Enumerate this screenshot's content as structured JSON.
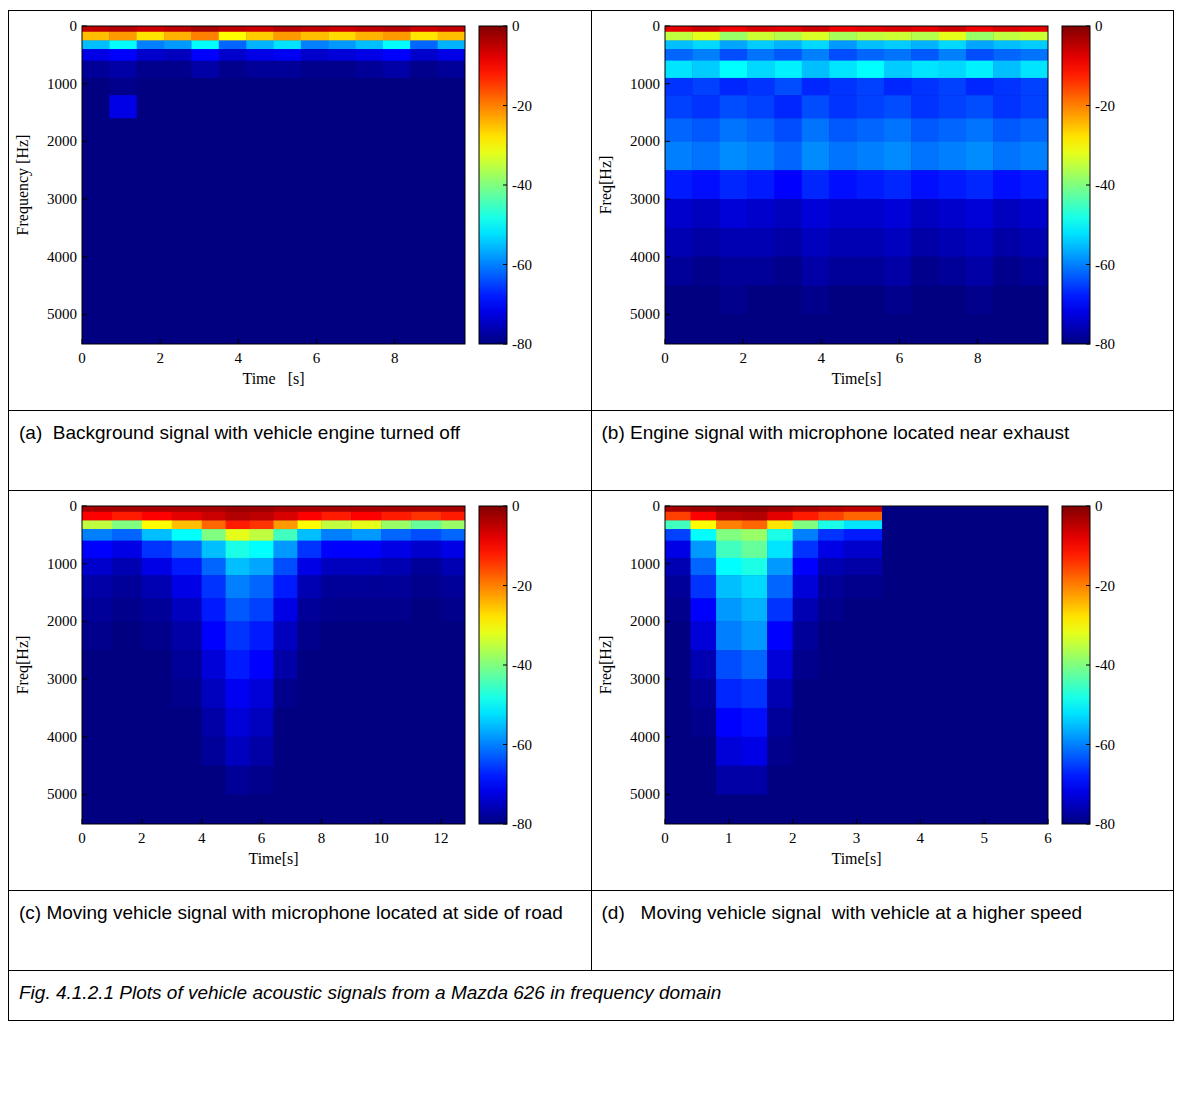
{
  "figure_caption": "Fig. 4.1.2.1 Plots of vehicle acoustic signals from a Mazda 626 in frequency domain",
  "chart_data": [
    {
      "type": "heatmap",
      "caption": "(a)  Background signal with vehicle engine turned off",
      "xlabel": "Time   [s]",
      "ylabel": "Frequency [Hz]",
      "xlim": [
        0,
        9.8
      ],
      "xticks": [
        0,
        2,
        4,
        6,
        8
      ],
      "ylim": [
        0,
        5512
      ],
      "yticks": [
        0,
        1000,
        2000,
        3000,
        4000,
        5000
      ],
      "color_range": [
        -80,
        0
      ],
      "color_ticks": [
        0,
        -20,
        -40,
        -60,
        -80
      ],
      "x_bins": [
        0,
        0.7,
        1.4,
        2.1,
        2.8,
        3.5,
        4.2,
        4.9,
        5.6,
        6.3,
        7.0,
        7.7,
        8.4,
        9.1,
        9.8
      ],
      "y_bins": [
        0,
        100,
        250,
        400,
        600,
        900,
        1200,
        1600,
        2000,
        2500,
        3000,
        3500,
        4000,
        4500,
        5000,
        5512
      ],
      "cells": [
        [
          -5,
          -4,
          -6,
          -5,
          -3,
          -5,
          -6,
          -4,
          -5,
          -6,
          -5,
          -4,
          -6,
          -5
        ],
        [
          -25,
          -22,
          -28,
          -24,
          -20,
          -30,
          -26,
          -22,
          -25,
          -27,
          -24,
          -22,
          -28,
          -25
        ],
        [
          -55,
          -50,
          -60,
          -58,
          -50,
          -62,
          -56,
          -52,
          -60,
          -58,
          -55,
          -50,
          -62,
          -56
        ],
        [
          -72,
          -70,
          -74,
          -75,
          -70,
          -74,
          -72,
          -71,
          -74,
          -73,
          -72,
          -70,
          -74,
          -72
        ],
        [
          -78,
          -77,
          -79,
          -79,
          -77,
          -79,
          -78,
          -78,
          -79,
          -79,
          -78,
          -77,
          -79,
          -78
        ],
        [
          -80,
          -79,
          -80,
          -80,
          -80,
          -80,
          -80,
          -80,
          -80,
          -80,
          -80,
          -80,
          -80,
          -80
        ],
        [
          -80,
          -72,
          -80,
          -80,
          -80,
          -80,
          -80,
          -80,
          -80,
          -80,
          -80,
          -80,
          -80,
          -80
        ],
        [
          -80,
          -80,
          -80,
          -80,
          -80,
          -80,
          -80,
          -80,
          -80,
          -80,
          -80,
          -80,
          -80,
          -80
        ],
        [
          -80,
          -80,
          -80,
          -80,
          -80,
          -80,
          -80,
          -80,
          -80,
          -80,
          -80,
          -80,
          -80,
          -80
        ],
        [
          -80,
          -80,
          -80,
          -80,
          -80,
          -80,
          -80,
          -80,
          -80,
          -80,
          -80,
          -80,
          -80,
          -80
        ],
        [
          -80,
          -80,
          -80,
          -80,
          -80,
          -80,
          -80,
          -80,
          -80,
          -80,
          -80,
          -80,
          -80,
          -80
        ],
        [
          -80,
          -80,
          -80,
          -80,
          -80,
          -80,
          -80,
          -80,
          -80,
          -80,
          -80,
          -80,
          -80,
          -80
        ],
        [
          -80,
          -80,
          -80,
          -80,
          -80,
          -80,
          -80,
          -80,
          -80,
          -80,
          -80,
          -80,
          -80,
          -80
        ],
        [
          -80,
          -80,
          -80,
          -80,
          -80,
          -80,
          -80,
          -80,
          -80,
          -80,
          -80,
          -80,
          -80,
          -80
        ],
        [
          -80,
          -80,
          -80,
          -80,
          -80,
          -80,
          -80,
          -80,
          -80,
          -80,
          -80,
          -80,
          -80,
          -80
        ]
      ]
    },
    {
      "type": "heatmap",
      "caption": "(b) Engine signal with microphone located near exhaust",
      "xlabel": "Time[s]",
      "ylabel": "Freq[Hz]",
      "xlim": [
        0,
        9.8
      ],
      "xticks": [
        0,
        2,
        4,
        6,
        8
      ],
      "ylim": [
        0,
        5512
      ],
      "yticks": [
        0,
        1000,
        2000,
        3000,
        4000,
        5000
      ],
      "color_range": [
        -80,
        0
      ],
      "color_ticks": [
        0,
        -20,
        -40,
        -60,
        -80
      ],
      "x_bins": [
        0,
        0.7,
        1.4,
        2.1,
        2.8,
        3.5,
        4.2,
        4.9,
        5.6,
        6.3,
        7.0,
        7.7,
        8.4,
        9.1,
        9.8
      ],
      "y_bins": [
        0,
        100,
        250,
        400,
        600,
        900,
        1200,
        1600,
        2000,
        2500,
        3000,
        3500,
        4000,
        4500,
        5000,
        5512
      ],
      "cells": [
        [
          -8,
          -6,
          -9,
          -7,
          -8,
          -6,
          -9,
          -8,
          -7,
          -8,
          -6,
          -9,
          -7,
          -8
        ],
        [
          -35,
          -32,
          -38,
          -34,
          -36,
          -33,
          -37,
          -35,
          -34,
          -36,
          -32,
          -38,
          -35,
          -34
        ],
        [
          -55,
          -53,
          -57,
          -54,
          -56,
          -53,
          -58,
          -55,
          -54,
          -56,
          -53,
          -57,
          -55,
          -54
        ],
        [
          -62,
          -60,
          -64,
          -61,
          -63,
          -60,
          -64,
          -62,
          -61,
          -63,
          -60,
          -64,
          -62,
          -61
        ],
        [
          -52,
          -54,
          -50,
          -53,
          -51,
          -55,
          -52,
          -50,
          -54,
          -52,
          -53,
          -51,
          -55,
          -52
        ],
        [
          -66,
          -65,
          -67,
          -66,
          -64,
          -67,
          -66,
          -65,
          -67,
          -66,
          -65,
          -67,
          -66,
          -65
        ],
        [
          -65,
          -66,
          -64,
          -65,
          -67,
          -64,
          -66,
          -65,
          -64,
          -66,
          -65,
          -64,
          -66,
          -65
        ],
        [
          -62,
          -63,
          -61,
          -62,
          -64,
          -61,
          -63,
          -62,
          -61,
          -63,
          -62,
          -61,
          -63,
          -62
        ],
        [
          -60,
          -61,
          -59,
          -60,
          -62,
          -59,
          -61,
          -60,
          -59,
          -61,
          -60,
          -59,
          -61,
          -60
        ],
        [
          -68,
          -69,
          -67,
          -68,
          -70,
          -67,
          -69,
          -68,
          -67,
          -69,
          -68,
          -67,
          -69,
          -68
        ],
        [
          -74,
          -75,
          -73,
          -74,
          -75,
          -73,
          -74,
          -74,
          -73,
          -75,
          -74,
          -73,
          -75,
          -74
        ],
        [
          -76,
          -77,
          -76,
          -76,
          -77,
          -75,
          -76,
          -76,
          -75,
          -77,
          -76,
          -75,
          -77,
          -76
        ],
        [
          -78,
          -79,
          -78,
          -78,
          -79,
          -77,
          -78,
          -78,
          -77,
          -79,
          -78,
          -77,
          -79,
          -78
        ],
        [
          -80,
          -80,
          -79,
          -80,
          -80,
          -79,
          -80,
          -80,
          -79,
          -80,
          -80,
          -79,
          -80,
          -80
        ],
        [
          -80,
          -80,
          -80,
          -80,
          -80,
          -80,
          -80,
          -80,
          -80,
          -80,
          -80,
          -80,
          -80,
          -80
        ]
      ]
    },
    {
      "type": "heatmap",
      "caption": "(c) Moving vehicle signal with microphone located at side of road",
      "xlabel": "Time[s]",
      "ylabel": "Freq[Hz]",
      "xlim": [
        0,
        12.8
      ],
      "xticks": [
        0,
        2,
        4,
        6,
        8,
        10,
        12
      ],
      "ylim": [
        0,
        5512
      ],
      "yticks": [
        0,
        1000,
        2000,
        3000,
        4000,
        5000
      ],
      "color_range": [
        -80,
        0
      ],
      "color_ticks": [
        0,
        -20,
        -40,
        -60,
        -80
      ],
      "x_bins": [
        0,
        1,
        2,
        3,
        4,
        4.8,
        5.6,
        6.4,
        7.2,
        8,
        9,
        10,
        11,
        12,
        12.8
      ],
      "y_bins": [
        0,
        100,
        250,
        400,
        600,
        900,
        1200,
        1600,
        2000,
        2500,
        3000,
        3500,
        4000,
        4500,
        5000,
        5512
      ],
      "cells": [
        [
          -3,
          -3,
          -3,
          -3,
          -3,
          -2,
          -2,
          -3,
          -3,
          -3,
          -3,
          -3,
          -3,
          -3
        ],
        [
          -10,
          -12,
          -10,
          -8,
          -6,
          -4,
          -5,
          -7,
          -10,
          -12,
          -10,
          -12,
          -14,
          -12
        ],
        [
          -35,
          -40,
          -30,
          -25,
          -18,
          -12,
          -14,
          -22,
          -30,
          -35,
          -32,
          -38,
          -42,
          -38
        ],
        [
          -60,
          -62,
          -55,
          -50,
          -40,
          -32,
          -35,
          -45,
          -55,
          -60,
          -58,
          -62,
          -64,
          -62
        ],
        [
          -70,
          -72,
          -66,
          -62,
          -55,
          -48,
          -50,
          -58,
          -66,
          -70,
          -70,
          -72,
          -74,
          -72
        ],
        [
          -74,
          -76,
          -72,
          -68,
          -62,
          -55,
          -57,
          -64,
          -72,
          -75,
          -75,
          -76,
          -78,
          -76
        ],
        [
          -77,
          -78,
          -76,
          -72,
          -66,
          -60,
          -62,
          -68,
          -76,
          -78,
          -78,
          -78,
          -79,
          -78
        ],
        [
          -78,
          -79,
          -78,
          -75,
          -68,
          -63,
          -65,
          -72,
          -78,
          -79,
          -79,
          -79,
          -80,
          -79
        ],
        [
          -79,
          -80,
          -79,
          -77,
          -70,
          -66,
          -68,
          -75,
          -79,
          -80,
          -80,
          -80,
          -80,
          -80
        ],
        [
          -80,
          -80,
          -80,
          -78,
          -73,
          -68,
          -70,
          -77,
          -80,
          -80,
          -80,
          -80,
          -80,
          -80
        ],
        [
          -80,
          -80,
          -80,
          -79,
          -75,
          -71,
          -73,
          -79,
          -80,
          -80,
          -80,
          -80,
          -80,
          -80
        ],
        [
          -80,
          -80,
          -80,
          -80,
          -77,
          -73,
          -75,
          -80,
          -80,
          -80,
          -80,
          -80,
          -80,
          -80
        ],
        [
          -80,
          -80,
          -80,
          -80,
          -78,
          -75,
          -77,
          -80,
          -80,
          -80,
          -80,
          -80,
          -80,
          -80
        ],
        [
          -80,
          -80,
          -80,
          -80,
          -80,
          -78,
          -79,
          -80,
          -80,
          -80,
          -80,
          -80,
          -80,
          -80
        ],
        [
          -80,
          -80,
          -80,
          -80,
          -80,
          -80,
          -80,
          -80,
          -80,
          -80,
          -80,
          -80,
          -80,
          -80
        ]
      ]
    },
    {
      "type": "heatmap",
      "caption": "(d)   Moving vehicle signal  with vehicle at a higher speed",
      "xlabel": "Time[s]",
      "ylabel": "Freq[Hz]",
      "xlim": [
        0,
        6
      ],
      "xticks": [
        0,
        1,
        2,
        3,
        4,
        5,
        6
      ],
      "ylim": [
        0,
        5512
      ],
      "yticks": [
        0,
        1000,
        2000,
        3000,
        4000,
        5000
      ],
      "color_range": [
        -80,
        0
      ],
      "color_ticks": [
        0,
        -20,
        -40,
        -60,
        -80
      ],
      "x_bins": [
        0,
        0.4,
        0.8,
        1.2,
        1.6,
        2.0,
        2.4,
        2.8,
        3.4,
        3.9,
        4.4,
        4.9,
        5.4,
        5.7,
        6.0
      ],
      "y_bins": [
        0,
        100,
        250,
        400,
        600,
        900,
        1200,
        1600,
        2000,
        2500,
        3000,
        3500,
        4000,
        4500,
        5000,
        5512
      ],
      "cells": [
        [
          -3,
          -2,
          -1,
          -1,
          -2,
          -3,
          -4,
          -5,
          -80,
          -80,
          -80,
          -80,
          -80,
          -80
        ],
        [
          -15,
          -10,
          -5,
          -4,
          -8,
          -12,
          -15,
          -18,
          -80,
          -80,
          -80,
          -80,
          -80,
          -80
        ],
        [
          -45,
          -30,
          -20,
          -18,
          -28,
          -40,
          -48,
          -52,
          -80,
          -80,
          -80,
          -80,
          -80,
          -80
        ],
        [
          -65,
          -50,
          -40,
          -38,
          -48,
          -60,
          -66,
          -68,
          -80,
          -80,
          -80,
          -80,
          -80,
          -80
        ],
        [
          -72,
          -58,
          -45,
          -42,
          -52,
          -66,
          -72,
          -74,
          -80,
          -80,
          -80,
          -80,
          -80,
          -80
        ],
        [
          -76,
          -62,
          -50,
          -48,
          -58,
          -70,
          -76,
          -77,
          -80,
          -80,
          -80,
          -80,
          -80,
          -80
        ],
        [
          -78,
          -66,
          -55,
          -53,
          -62,
          -73,
          -78,
          -79,
          -80,
          -80,
          -80,
          -80,
          -80,
          -80
        ],
        [
          -79,
          -70,
          -58,
          -56,
          -66,
          -76,
          -79,
          -80,
          -80,
          -80,
          -80,
          -80,
          -80,
          -80
        ],
        [
          -80,
          -73,
          -60,
          -58,
          -70,
          -78,
          -80,
          -80,
          -80,
          -80,
          -80,
          -80,
          -80,
          -80
        ],
        [
          -80,
          -76,
          -64,
          -62,
          -73,
          -79,
          -80,
          -80,
          -80,
          -80,
          -80,
          -80,
          -80,
          -80
        ],
        [
          -80,
          -78,
          -67,
          -66,
          -76,
          -80,
          -80,
          -80,
          -80,
          -80,
          -80,
          -80,
          -80,
          -80
        ],
        [
          -80,
          -79,
          -70,
          -69,
          -78,
          -80,
          -80,
          -80,
          -80,
          -80,
          -80,
          -80,
          -80,
          -80
        ],
        [
          -80,
          -80,
          -73,
          -72,
          -79,
          -80,
          -80,
          -80,
          -80,
          -80,
          -80,
          -80,
          -80,
          -80
        ],
        [
          -80,
          -80,
          -77,
          -77,
          -80,
          -80,
          -80,
          -80,
          -80,
          -80,
          -80,
          -80,
          -80,
          -80
        ],
        [
          -80,
          -80,
          -80,
          -80,
          -80,
          -80,
          -80,
          -80,
          -80,
          -80,
          -80,
          -80,
          -80,
          -80
        ]
      ]
    }
  ]
}
